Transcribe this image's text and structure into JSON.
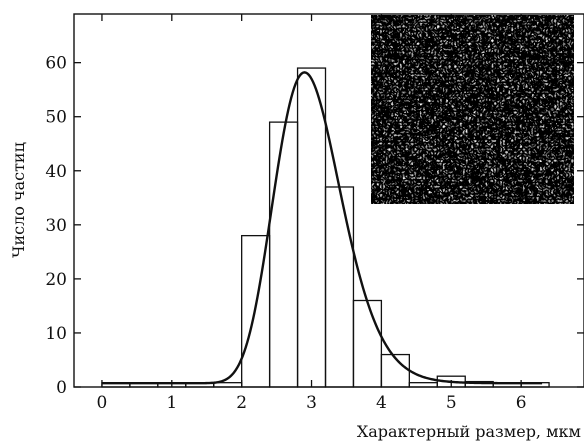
{
  "chart_data": {
    "type": "bar",
    "title": "",
    "xlabel": "Характерный размер, мкм",
    "ylabel": "Число частиц",
    "xlim": [
      -0.4,
      6.9
    ],
    "ylim": [
      0,
      69
    ],
    "xticks": [
      0,
      1,
      2,
      3,
      4,
      5,
      6
    ],
    "yticks": [
      0,
      10,
      20,
      30,
      40,
      50,
      60
    ],
    "bin_width": 0.4,
    "bars": [
      {
        "x0": 0.0,
        "x1": 0.4,
        "value": 0.8
      },
      {
        "x0": 0.4,
        "x1": 0.8,
        "value": 0.8
      },
      {
        "x0": 0.8,
        "x1": 1.2,
        "value": 0.8
      },
      {
        "x0": 1.2,
        "x1": 1.6,
        "value": 0.8
      },
      {
        "x0": 1.6,
        "x1": 2.0,
        "value": 0.8
      },
      {
        "x0": 2.0,
        "x1": 2.4,
        "value": 28
      },
      {
        "x0": 2.4,
        "x1": 2.8,
        "value": 49
      },
      {
        "x0": 2.8,
        "x1": 3.2,
        "value": 59
      },
      {
        "x0": 3.2,
        "x1": 3.6,
        "value": 37
      },
      {
        "x0": 3.6,
        "x1": 4.0,
        "value": 16
      },
      {
        "x0": 4.0,
        "x1": 4.4,
        "value": 6
      },
      {
        "x0": 4.4,
        "x1": 4.8,
        "value": 0.8
      },
      {
        "x0": 4.8,
        "x1": 5.2,
        "value": 2
      },
      {
        "x0": 5.2,
        "x1": 5.6,
        "value": 1
      },
      {
        "x0": 5.6,
        "x1": 6.0,
        "value": 0.8
      },
      {
        "x0": 6.0,
        "x1": 6.4,
        "value": 0.8
      }
    ],
    "fit_curve": {
      "type": "lognormal",
      "baseline": 0.7,
      "x_range": [
        0,
        6.3
      ],
      "peak_x": 2.9,
      "peak_y": 58.2,
      "sigma": 0.165
    },
    "inset": {
      "kind": "micrograph",
      "placement": "top-right"
    },
    "grid": false,
    "legend": "none"
  }
}
